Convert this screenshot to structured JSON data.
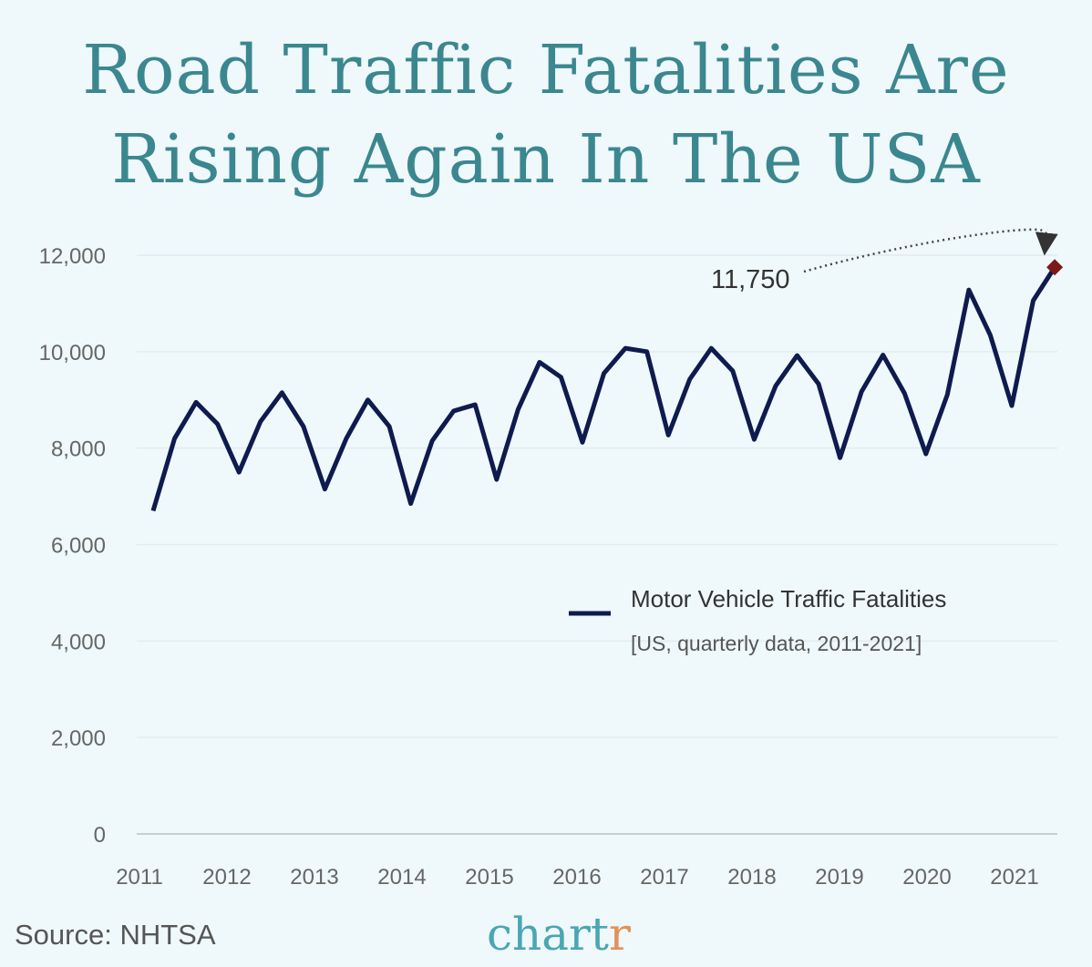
{
  "title_line1": "Road Traffic Fatalities Are",
  "title_line2": "Rising Again In The USA",
  "source": "Source: NHTSA",
  "logo_main": "chart",
  "logo_end": "r",
  "colors": {
    "background": "#eff8fa",
    "title": "#3b8790",
    "line": "#0f1a4f",
    "highlight": "#7b1a1a"
  },
  "chart_data": {
    "type": "line",
    "title": "Road Traffic Fatalities Are Rising Again In The USA",
    "ylim": [
      0,
      12000
    ],
    "yticks": [
      "0",
      "2,000",
      "4,000",
      "6,000",
      "8,000",
      "10,000",
      "12,000"
    ],
    "ytick_values": [
      0,
      2000,
      4000,
      6000,
      8000,
      10000,
      12000
    ],
    "xticks": [
      "2011",
      "2012",
      "2013",
      "2014",
      "2015",
      "2016",
      "2017",
      "2018",
      "2019",
      "2020",
      "2021"
    ],
    "grid": true,
    "legend_placement": "center-right",
    "series": [
      {
        "name": "Motor Vehicle Traffic Fatalities",
        "subtitle": "[US, quarterly data, 2011-2021]",
        "x": [
          "2011 Q1",
          "2011 Q2",
          "2011 Q3",
          "2011 Q4",
          "2012 Q1",
          "2012 Q2",
          "2012 Q3",
          "2012 Q4",
          "2013 Q1",
          "2013 Q2",
          "2013 Q3",
          "2013 Q4",
          "2014 Q1",
          "2014 Q2",
          "2014 Q3",
          "2014 Q4",
          "2015 Q1",
          "2015 Q2",
          "2015 Q3",
          "2015 Q4",
          "2016 Q1",
          "2016 Q2",
          "2016 Q3",
          "2016 Q4",
          "2017 Q1",
          "2017 Q2",
          "2017 Q3",
          "2017 Q4",
          "2018 Q1",
          "2018 Q2",
          "2018 Q3",
          "2018 Q4",
          "2019 Q1",
          "2019 Q2",
          "2019 Q3",
          "2019 Q4",
          "2020 Q1",
          "2020 Q2",
          "2020 Q3",
          "2020 Q4",
          "2021 Q1",
          "2021 Q2",
          "2021 Q3"
        ],
        "values": [
          6700,
          8200,
          8950,
          8500,
          7500,
          8550,
          9150,
          8450,
          7150,
          8200,
          9000,
          8450,
          6850,
          8150,
          8770,
          8900,
          7350,
          8800,
          9780,
          9470,
          8120,
          9550,
          10070,
          10000,
          8270,
          9430,
          10070,
          9600,
          8180,
          9290,
          9920,
          9330,
          7800,
          9170,
          9930,
          9140,
          7880,
          9110,
          11280,
          10340,
          8880,
          11060,
          11750
        ]
      }
    ],
    "annotation": {
      "label": "11,750",
      "point": "2021 Q3"
    }
  }
}
